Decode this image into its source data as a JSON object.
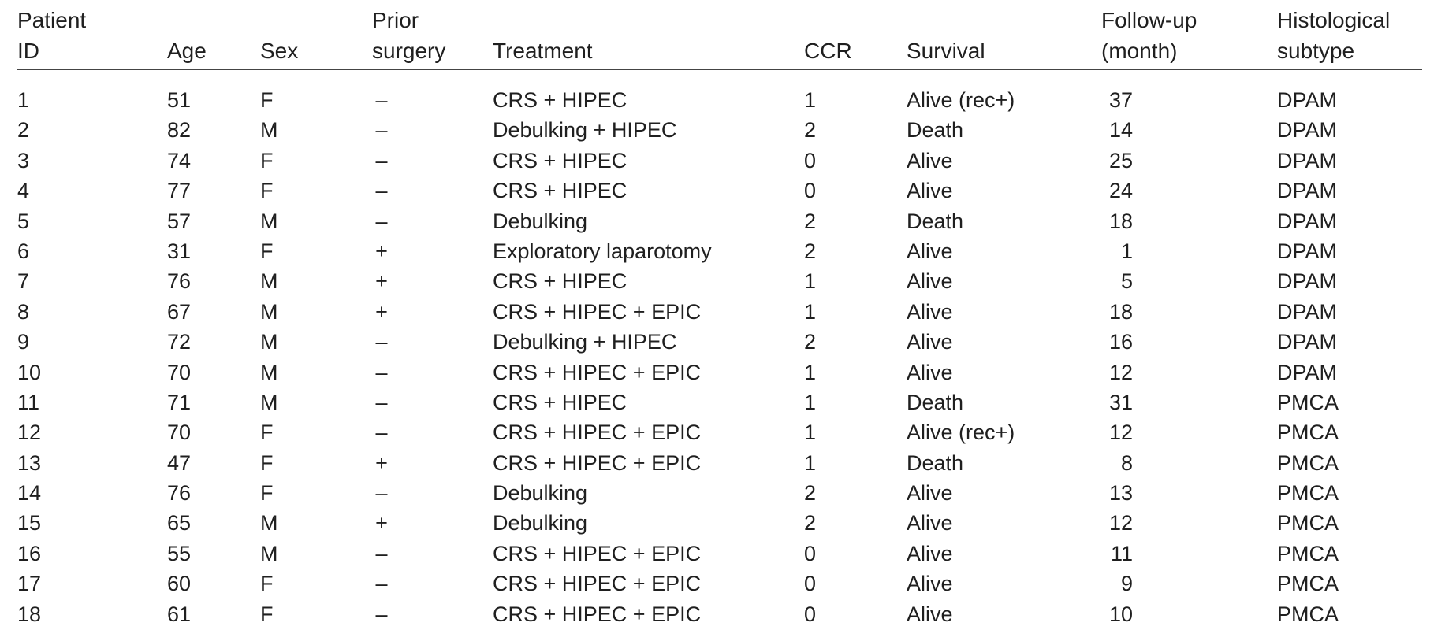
{
  "columns": [
    {
      "key": "id",
      "lines": [
        "Patient",
        "ID"
      ]
    },
    {
      "key": "age",
      "lines": [
        "Age"
      ]
    },
    {
      "key": "sex",
      "lines": [
        "Sex"
      ]
    },
    {
      "key": "prior",
      "lines": [
        "Prior",
        "surgery"
      ]
    },
    {
      "key": "treatment",
      "lines": [
        "Treatment"
      ]
    },
    {
      "key": "ccr",
      "lines": [
        "CCR"
      ]
    },
    {
      "key": "survival",
      "lines": [
        "Survival"
      ]
    },
    {
      "key": "followup",
      "lines": [
        "Follow-up",
        "(month)"
      ]
    },
    {
      "key": "histology",
      "lines": [
        "Histological",
        "subtype"
      ]
    }
  ],
  "rows": [
    {
      "id": "1",
      "age": "51",
      "sex": "F",
      "prior": "–",
      "treatment": "CRS + HIPEC",
      "ccr": "1",
      "survival": "Alive (rec+)",
      "followup": "37",
      "histology": "DPAM"
    },
    {
      "id": "2",
      "age": "82",
      "sex": "M",
      "prior": "–",
      "treatment": "Debulking + HIPEC",
      "ccr": "2",
      "survival": "Death",
      "followup": "14",
      "histology": "DPAM"
    },
    {
      "id": "3",
      "age": "74",
      "sex": "F",
      "prior": "–",
      "treatment": "CRS + HIPEC",
      "ccr": "0",
      "survival": "Alive",
      "followup": "25",
      "histology": "DPAM"
    },
    {
      "id": "4",
      "age": "77",
      "sex": "F",
      "prior": "–",
      "treatment": "CRS + HIPEC",
      "ccr": "0",
      "survival": "Alive",
      "followup": "24",
      "histology": "DPAM"
    },
    {
      "id": "5",
      "age": "57",
      "sex": "M",
      "prior": "–",
      "treatment": "Debulking",
      "ccr": "2",
      "survival": "Death",
      "followup": "18",
      "histology": "DPAM"
    },
    {
      "id": "6",
      "age": "31",
      "sex": "F",
      "prior": "+",
      "treatment": "Exploratory laparotomy",
      "ccr": "2",
      "survival": "Alive",
      "followup": "1",
      "histology": "DPAM"
    },
    {
      "id": "7",
      "age": "76",
      "sex": "M",
      "prior": "+",
      "treatment": "CRS + HIPEC",
      "ccr": "1",
      "survival": "Alive",
      "followup": "5",
      "histology": "DPAM"
    },
    {
      "id": "8",
      "age": "67",
      "sex": "M",
      "prior": "+",
      "treatment": "CRS + HIPEC + EPIC",
      "ccr": "1",
      "survival": "Alive",
      "followup": "18",
      "histology": "DPAM"
    },
    {
      "id": "9",
      "age": "72",
      "sex": "M",
      "prior": "–",
      "treatment": "Debulking + HIPEC",
      "ccr": "2",
      "survival": "Alive",
      "followup": "16",
      "histology": "DPAM"
    },
    {
      "id": "10",
      "age": "70",
      "sex": "M",
      "prior": "–",
      "treatment": "CRS + HIPEC + EPIC",
      "ccr": "1",
      "survival": "Alive",
      "followup": "12",
      "histology": "DPAM"
    },
    {
      "id": "11",
      "age": "71",
      "sex": "M",
      "prior": "–",
      "treatment": "CRS + HIPEC",
      "ccr": "1",
      "survival": "Death",
      "followup": "31",
      "histology": "PMCA"
    },
    {
      "id": "12",
      "age": "70",
      "sex": "F",
      "prior": "–",
      "treatment": "CRS + HIPEC + EPIC",
      "ccr": "1",
      "survival": "Alive (rec+)",
      "followup": "12",
      "histology": "PMCA"
    },
    {
      "id": "13",
      "age": "47",
      "sex": "F",
      "prior": "+",
      "treatment": "CRS + HIPEC + EPIC",
      "ccr": "1",
      "survival": "Death",
      "followup": "8",
      "histology": "PMCA"
    },
    {
      "id": "14",
      "age": "76",
      "sex": "F",
      "prior": "–",
      "treatment": "Debulking",
      "ccr": "2",
      "survival": "Alive",
      "followup": "13",
      "histology": "PMCA"
    },
    {
      "id": "15",
      "age": "65",
      "sex": "M",
      "prior": "+",
      "treatment": "Debulking",
      "ccr": "2",
      "survival": "Alive",
      "followup": "12",
      "histology": "PMCA"
    },
    {
      "id": "16",
      "age": "55",
      "sex": "M",
      "prior": "–",
      "treatment": "CRS + HIPEC + EPIC",
      "ccr": "0",
      "survival": "Alive",
      "followup": "11",
      "histology": "PMCA"
    },
    {
      "id": "17",
      "age": "60",
      "sex": "F",
      "prior": "–",
      "treatment": "CRS + HIPEC + EPIC",
      "ccr": "0",
      "survival": "Alive",
      "followup": "9",
      "histology": "PMCA"
    },
    {
      "id": "18",
      "age": "61",
      "sex": "F",
      "prior": "–",
      "treatment": "CRS + HIPEC + EPIC",
      "ccr": "0",
      "survival": "Alive",
      "followup": "10",
      "histology": "PMCA"
    }
  ]
}
